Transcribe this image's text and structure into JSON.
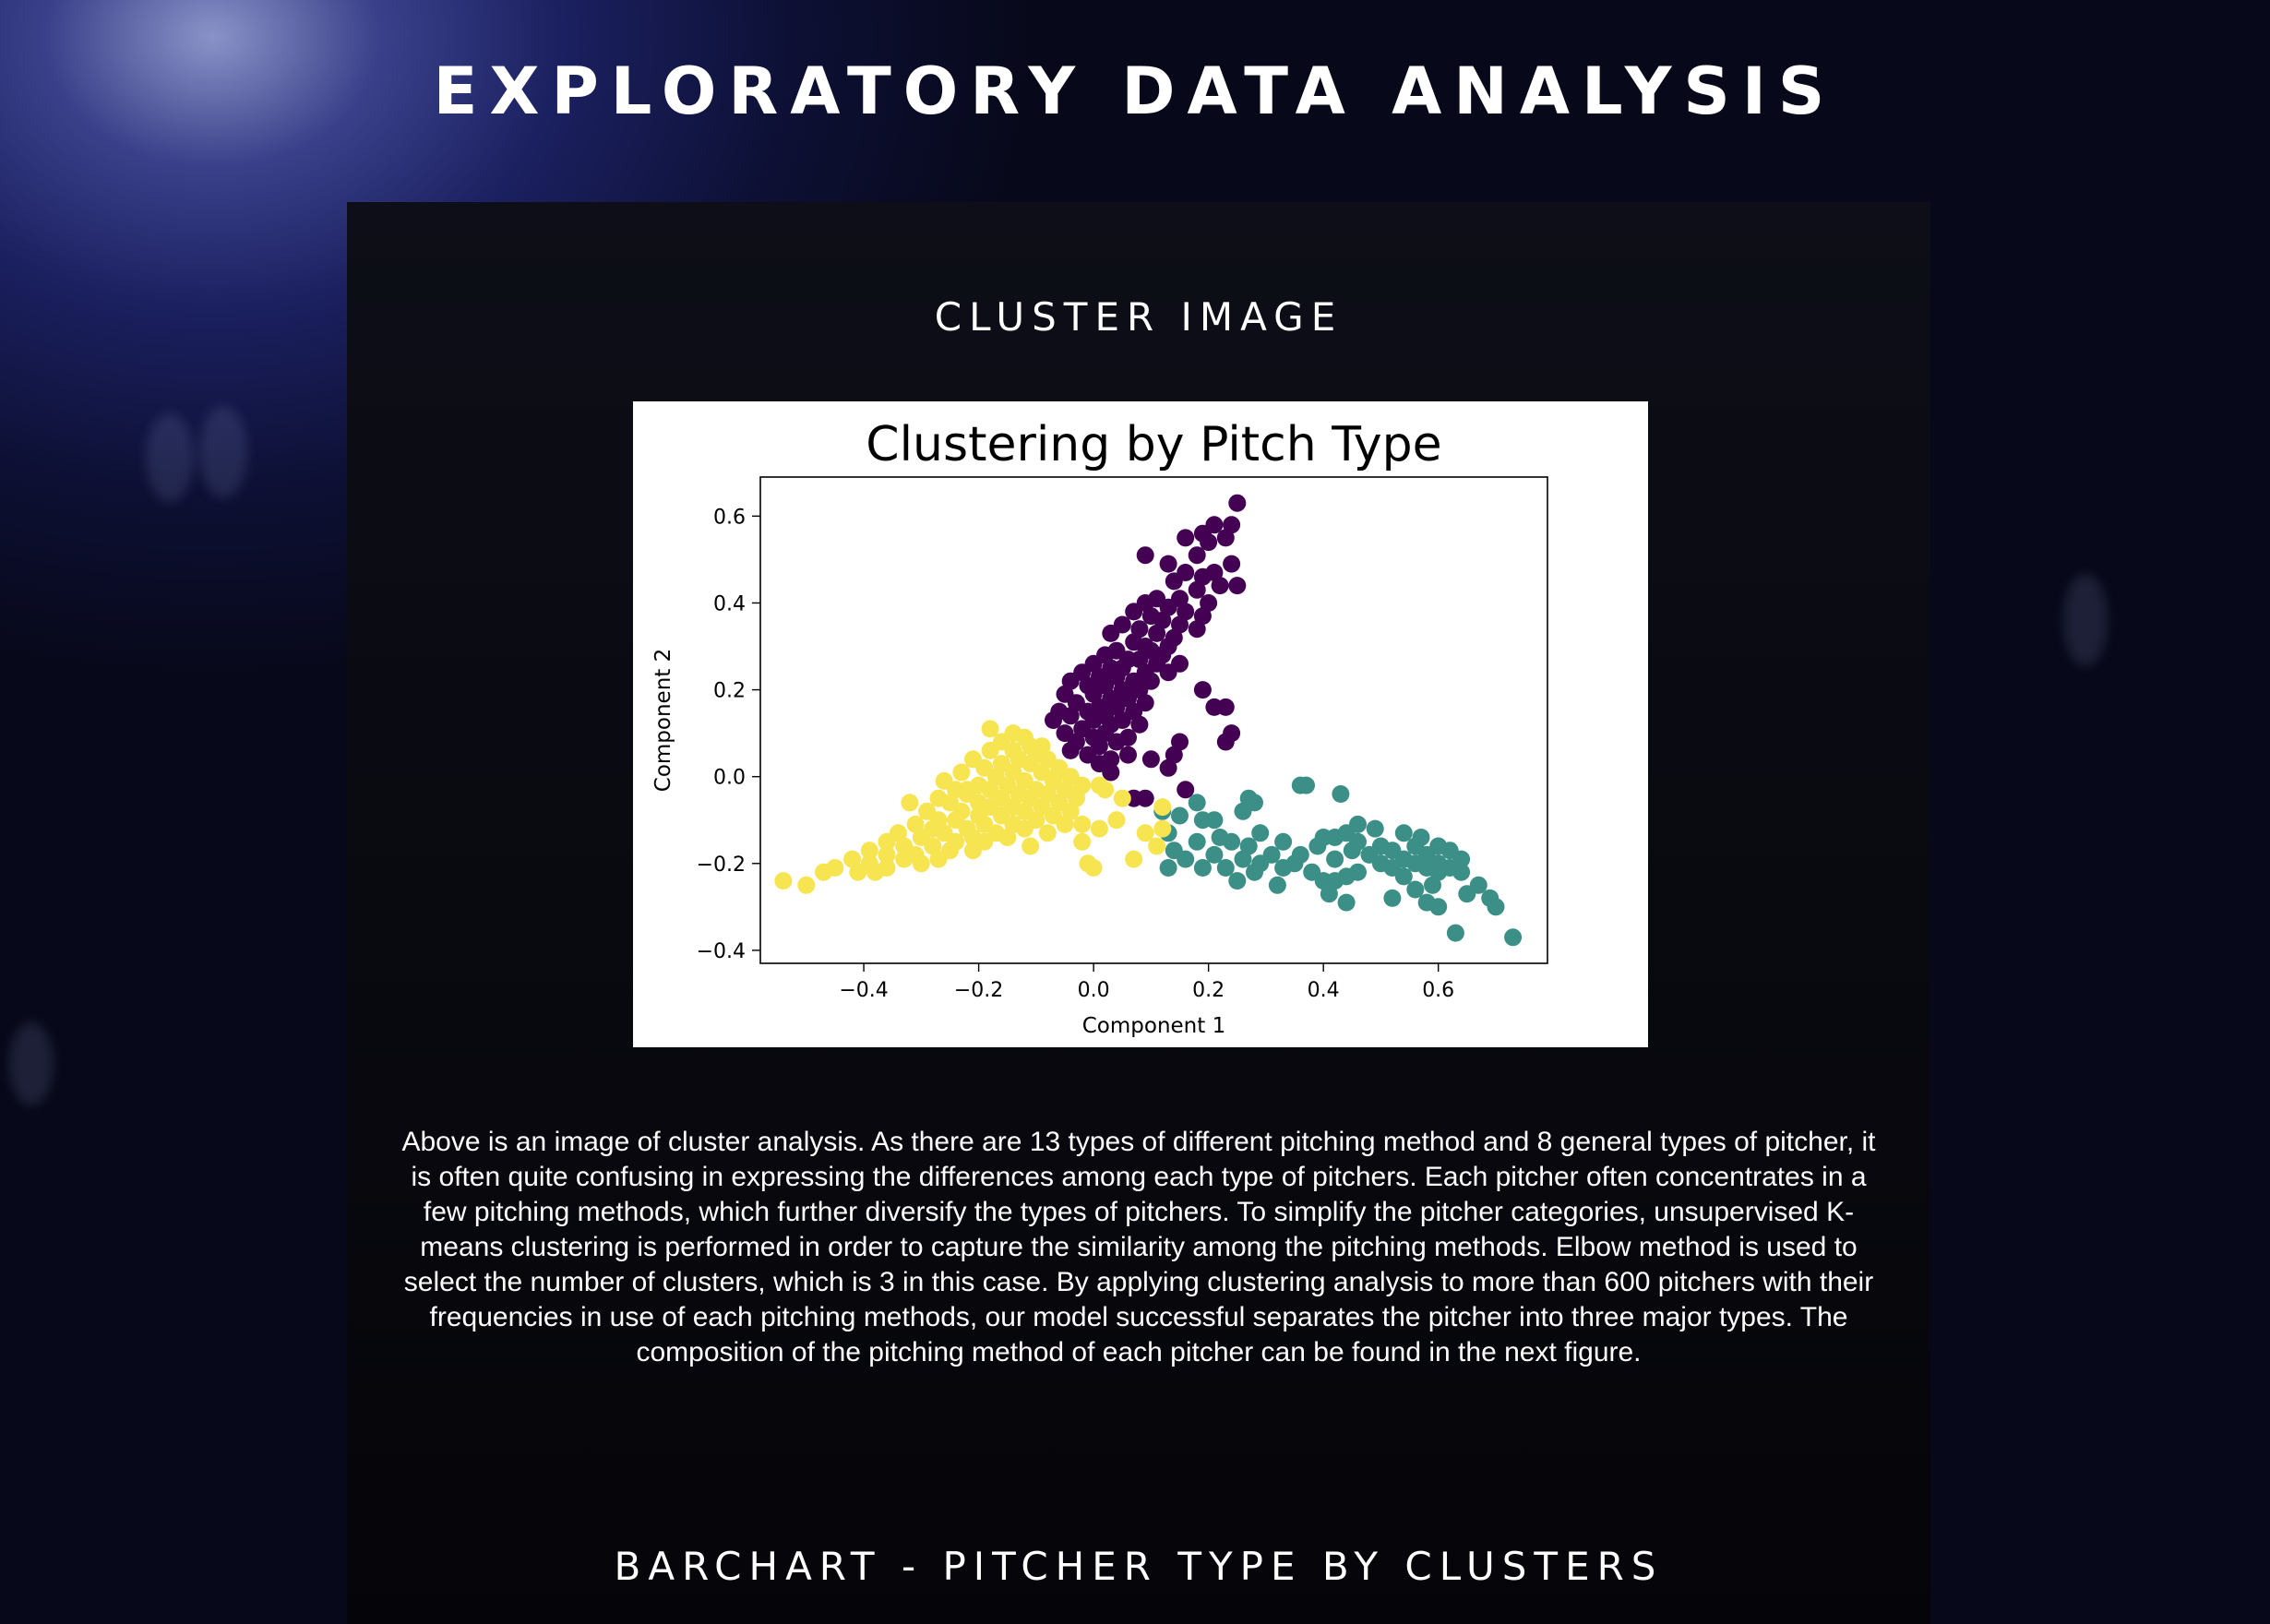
{
  "header": {
    "title": "EXPLORATORY DATA ANALYSIS"
  },
  "sections": {
    "cluster": {
      "title": "CLUSTER IMAGE",
      "description": "Above is an image of cluster analysis. As there are 13 types of different pitching method and 8 general types of pitcher, it is often quite confusing in expressing the differences among each type of pitchers. Each pitcher often concentrates in a few pitching methods, which further diversify the types of pitchers. To simplify the pitcher categories, unsupervised K-means clustering is performed in order to capture the similarity among the pitching methods. Elbow method is used to select the number of clusters, which is 3 in this case. By applying clustering analysis to more than 600 pitchers with their frequencies in use of each pitching methods, our model successful separates the pitcher into three major types. The composition of the pitching method of each pitcher can be found in the next figure."
    },
    "barchart": {
      "title": "BARCHART - PITCHER TYPE BY CLUSTERS"
    }
  },
  "colors": {
    "cluster_purple": "#440154",
    "cluster_teal": "#3b8f86",
    "cluster_yellow": "#f6e451"
  },
  "chart_data": {
    "type": "scatter",
    "title": "Clustering by Pitch Type",
    "xlabel": "Component 1",
    "ylabel": "Component 2",
    "xlim": [
      -0.58,
      0.79
    ],
    "ylim": [
      -0.43,
      0.69
    ],
    "xticks": [
      -0.4,
      -0.2,
      0.0,
      0.2,
      0.4,
      0.6
    ],
    "xtick_labels": [
      "−0.4",
      "−0.2",
      "0.0",
      "0.2",
      "0.4",
      "0.6"
    ],
    "yticks": [
      -0.4,
      -0.2,
      0.0,
      0.2,
      0.4,
      0.6
    ],
    "ytick_labels": [
      "−0.4",
      "−0.2",
      "0.0",
      "0.2",
      "0.4",
      "0.6"
    ],
    "grid": false,
    "series": [
      {
        "color": "#440154",
        "points": [
          [
            0.25,
            0.63
          ],
          [
            0.21,
            0.58
          ],
          [
            0.24,
            0.58
          ],
          [
            0.19,
            0.56
          ],
          [
            0.23,
            0.55
          ],
          [
            0.16,
            0.55
          ],
          [
            0.2,
            0.54
          ],
          [
            0.09,
            0.51
          ],
          [
            0.18,
            0.51
          ],
          [
            0.24,
            0.49
          ],
          [
            0.13,
            0.49
          ],
          [
            0.21,
            0.47
          ],
          [
            0.16,
            0.47
          ],
          [
            0.19,
            0.46
          ],
          [
            0.14,
            0.45
          ],
          [
            0.22,
            0.44
          ],
          [
            0.25,
            0.44
          ],
          [
            0.18,
            0.43
          ],
          [
            0.11,
            0.41
          ],
          [
            0.15,
            0.41
          ],
          [
            0.09,
            0.4
          ],
          [
            0.2,
            0.4
          ],
          [
            0.13,
            0.39
          ],
          [
            0.07,
            0.38
          ],
          [
            0.16,
            0.38
          ],
          [
            0.1,
            0.37
          ],
          [
            0.19,
            0.37
          ],
          [
            0.12,
            0.36
          ],
          [
            0.05,
            0.35
          ],
          [
            0.15,
            0.35
          ],
          [
            0.08,
            0.34
          ],
          [
            0.18,
            0.34
          ],
          [
            0.03,
            0.33
          ],
          [
            0.11,
            0.33
          ],
          [
            0.14,
            0.32
          ],
          [
            0.07,
            0.31
          ],
          [
            0.09,
            0.3
          ],
          [
            0.13,
            0.3
          ],
          [
            0.04,
            0.29
          ],
          [
            0.1,
            0.29
          ],
          [
            0.12,
            0.28
          ],
          [
            0.02,
            0.28
          ],
          [
            0.06,
            0.27
          ],
          [
            0.08,
            0.27
          ],
          [
            0.11,
            0.26
          ],
          [
            0.15,
            0.26
          ],
          [
            0.0,
            0.26
          ],
          [
            0.03,
            0.25
          ],
          [
            0.05,
            0.25
          ],
          [
            0.09,
            0.24
          ],
          [
            -0.02,
            0.24
          ],
          [
            0.13,
            0.24
          ],
          [
            0.01,
            0.23
          ],
          [
            0.04,
            0.23
          ],
          [
            0.07,
            0.22
          ],
          [
            -0.04,
            0.22
          ],
          [
            0.1,
            0.22
          ],
          [
            -0.01,
            0.21
          ],
          [
            0.02,
            0.21
          ],
          [
            0.05,
            0.2
          ],
          [
            0.08,
            0.2
          ],
          [
            0.19,
            0.2
          ],
          [
            -0.05,
            0.19
          ],
          [
            0.0,
            0.19
          ],
          [
            0.03,
            0.18
          ],
          [
            0.06,
            0.18
          ],
          [
            0.09,
            0.17
          ],
          [
            -0.03,
            0.17
          ],
          [
            0.01,
            0.16
          ],
          [
            0.04,
            0.16
          ],
          [
            0.23,
            0.16
          ],
          [
            0.21,
            0.16
          ],
          [
            -0.06,
            0.15
          ],
          [
            -0.01,
            0.15
          ],
          [
            0.07,
            0.15
          ],
          [
            0.02,
            0.14
          ],
          [
            -0.04,
            0.14
          ],
          [
            0.05,
            0.13
          ],
          [
            0.0,
            0.13
          ],
          [
            -0.07,
            0.13
          ],
          [
            0.03,
            0.12
          ],
          [
            0.08,
            0.12
          ],
          [
            -0.02,
            0.11
          ],
          [
            0.02,
            0.1
          ],
          [
            0.24,
            0.1
          ],
          [
            -0.05,
            0.1
          ],
          [
            0.06,
            0.09
          ],
          [
            0.0,
            0.09
          ],
          [
            -0.03,
            0.08
          ],
          [
            0.04,
            0.08
          ],
          [
            0.23,
            0.08
          ],
          [
            0.15,
            0.08
          ],
          [
            0.01,
            0.07
          ],
          [
            -0.04,
            0.06
          ],
          [
            0.14,
            0.05
          ],
          [
            0.06,
            0.05
          ],
          [
            -0.01,
            0.05
          ],
          [
            0.03,
            0.04
          ],
          [
            0.1,
            0.04
          ],
          [
            0.01,
            0.03
          ],
          [
            0.13,
            0.02
          ],
          [
            0.03,
            0.01
          ],
          [
            0.16,
            -0.03
          ],
          [
            0.09,
            -0.05
          ],
          [
            0.07,
            -0.05
          ]
        ]
      },
      {
        "color": "#3b8f86",
        "points": [
          [
            0.36,
            -0.02
          ],
          [
            0.37,
            -0.02
          ],
          [
            0.43,
            -0.04
          ],
          [
            0.27,
            -0.05
          ],
          [
            0.28,
            -0.06
          ],
          [
            0.18,
            -0.06
          ],
          [
            0.26,
            -0.08
          ],
          [
            0.12,
            -0.08
          ],
          [
            0.15,
            -0.09
          ],
          [
            0.19,
            -0.1
          ],
          [
            0.21,
            -0.1
          ],
          [
            0.46,
            -0.11
          ],
          [
            0.49,
            -0.12
          ],
          [
            0.54,
            -0.13
          ],
          [
            0.29,
            -0.13
          ],
          [
            0.44,
            -0.13
          ],
          [
            0.13,
            -0.13
          ],
          [
            0.22,
            -0.14
          ],
          [
            0.4,
            -0.14
          ],
          [
            0.57,
            -0.14
          ],
          [
            0.42,
            -0.14
          ],
          [
            0.24,
            -0.15
          ],
          [
            0.46,
            -0.15
          ],
          [
            0.33,
            -0.15
          ],
          [
            0.18,
            -0.15
          ],
          [
            0.5,
            -0.16
          ],
          [
            0.56,
            -0.16
          ],
          [
            0.6,
            -0.16
          ],
          [
            0.27,
            -0.16
          ],
          [
            0.39,
            -0.16
          ],
          [
            0.14,
            -0.17
          ],
          [
            0.52,
            -0.17
          ],
          [
            0.62,
            -0.17
          ],
          [
            0.45,
            -0.17
          ],
          [
            0.58,
            -0.18
          ],
          [
            0.31,
            -0.18
          ],
          [
            0.48,
            -0.18
          ],
          [
            0.36,
            -0.18
          ],
          [
            0.21,
            -0.18
          ],
          [
            0.64,
            -0.19
          ],
          [
            0.54,
            -0.19
          ],
          [
            0.42,
            -0.19
          ],
          [
            0.26,
            -0.19
          ],
          [
            0.16,
            -0.19
          ],
          [
            0.6,
            -0.2
          ],
          [
            0.56,
            -0.2
          ],
          [
            0.5,
            -0.2
          ],
          [
            0.35,
            -0.2
          ],
          [
            0.29,
            -0.2
          ],
          [
            0.19,
            -0.21
          ],
          [
            0.62,
            -0.21
          ],
          [
            0.58,
            -0.21
          ],
          [
            0.52,
            -0.21
          ],
          [
            0.33,
            -0.21
          ],
          [
            0.13,
            -0.21
          ],
          [
            0.23,
            -0.21
          ],
          [
            0.38,
            -0.22
          ],
          [
            0.6,
            -0.22
          ],
          [
            0.64,
            -0.22
          ],
          [
            0.46,
            -0.22
          ],
          [
            0.28,
            -0.22
          ],
          [
            0.54,
            -0.23
          ],
          [
            0.44,
            -0.23
          ],
          [
            0.4,
            -0.24
          ],
          [
            0.25,
            -0.24
          ],
          [
            0.42,
            -0.24
          ],
          [
            0.59,
            -0.25
          ],
          [
            0.67,
            -0.25
          ],
          [
            0.32,
            -0.25
          ],
          [
            0.56,
            -0.26
          ],
          [
            0.41,
            -0.27
          ],
          [
            0.65,
            -0.27
          ],
          [
            0.69,
            -0.28
          ],
          [
            0.52,
            -0.28
          ],
          [
            0.44,
            -0.29
          ],
          [
            0.58,
            -0.29
          ],
          [
            0.7,
            -0.3
          ],
          [
            0.6,
            -0.3
          ],
          [
            0.73,
            -0.37
          ],
          [
            0.63,
            -0.36
          ]
        ]
      },
      {
        "color": "#f6e451",
        "points": [
          [
            -0.12,
            0.09
          ],
          [
            -0.16,
            0.08
          ],
          [
            -0.11,
            0.07
          ],
          [
            -0.09,
            0.07
          ],
          [
            -0.14,
            0.06
          ],
          [
            -0.18,
            0.06
          ],
          [
            -0.1,
            0.05
          ],
          [
            -0.13,
            0.04
          ],
          [
            -0.21,
            0.04
          ],
          [
            -0.08,
            0.04
          ],
          [
            -0.16,
            0.03
          ],
          [
            -0.11,
            0.03
          ],
          [
            -0.06,
            0.02
          ],
          [
            -0.19,
            0.02
          ],
          [
            -0.14,
            0.01
          ],
          [
            -0.23,
            0.01
          ],
          [
            -0.09,
            0.01
          ],
          [
            -0.04,
            0.0
          ],
          [
            -0.17,
            0.0
          ],
          [
            -0.12,
            -0.01
          ],
          [
            -0.26,
            -0.01
          ],
          [
            -0.07,
            -0.01
          ],
          [
            -0.2,
            -0.02
          ],
          [
            -0.15,
            -0.02
          ],
          [
            -0.02,
            -0.02
          ],
          [
            -0.1,
            -0.03
          ],
          [
            -0.24,
            -0.03
          ],
          [
            -0.18,
            -0.03
          ],
          [
            -0.05,
            -0.03
          ],
          [
            -0.13,
            -0.04
          ],
          [
            -0.22,
            -0.04
          ],
          [
            -0.08,
            -0.04
          ],
          [
            -0.27,
            -0.05
          ],
          [
            -0.16,
            -0.05
          ],
          [
            -0.11,
            -0.05
          ],
          [
            -0.03,
            -0.05
          ],
          [
            -0.2,
            -0.06
          ],
          [
            -0.06,
            -0.06
          ],
          [
            -0.25,
            -0.06
          ],
          [
            -0.14,
            -0.07
          ],
          [
            -0.09,
            -0.07
          ],
          [
            -0.18,
            -0.07
          ],
          [
            -0.29,
            -0.08
          ],
          [
            -0.23,
            -0.08
          ],
          [
            -0.04,
            -0.08
          ],
          [
            -0.12,
            -0.08
          ],
          [
            -0.16,
            -0.09
          ],
          [
            -0.2,
            -0.09
          ],
          [
            -0.07,
            -0.09
          ],
          [
            -0.27,
            -0.1
          ],
          [
            -0.1,
            -0.1
          ],
          [
            -0.24,
            -0.1
          ],
          [
            -0.14,
            -0.11
          ],
          [
            -0.31,
            -0.11
          ],
          [
            -0.19,
            -0.11
          ],
          [
            -0.05,
            -0.11
          ],
          [
            -0.22,
            -0.12
          ],
          [
            -0.28,
            -0.12
          ],
          [
            -0.12,
            -0.12
          ],
          [
            -0.34,
            -0.13
          ],
          [
            -0.17,
            -0.13
          ],
          [
            -0.26,
            -0.13
          ],
          [
            -0.08,
            -0.13
          ],
          [
            -0.21,
            -0.14
          ],
          [
            -0.3,
            -0.14
          ],
          [
            -0.15,
            -0.14
          ],
          [
            -0.36,
            -0.15
          ],
          [
            -0.24,
            -0.15
          ],
          [
            -0.02,
            -0.15
          ],
          [
            -0.19,
            -0.15
          ],
          [
            -0.28,
            -0.16
          ],
          [
            -0.33,
            -0.16
          ],
          [
            -0.11,
            -0.16
          ],
          [
            -0.39,
            -0.17
          ],
          [
            -0.25,
            -0.17
          ],
          [
            -0.21,
            -0.17
          ],
          [
            -0.31,
            -0.18
          ],
          [
            -0.36,
            -0.18
          ],
          [
            -0.27,
            -0.19
          ],
          [
            -0.42,
            -0.19
          ],
          [
            -0.33,
            -0.19
          ],
          [
            -0.39,
            -0.2
          ],
          [
            -0.3,
            -0.2
          ],
          [
            -0.45,
            -0.21
          ],
          [
            -0.36,
            -0.21
          ],
          [
            -0.41,
            -0.22
          ],
          [
            -0.47,
            -0.22
          ],
          [
            -0.38,
            -0.22
          ],
          [
            -0.54,
            -0.24
          ],
          [
            -0.5,
            -0.25
          ],
          [
            -0.02,
            -0.11
          ],
          [
            0.01,
            -0.12
          ],
          [
            0.04,
            -0.1
          ],
          [
            0.09,
            -0.13
          ],
          [
            0.12,
            -0.12
          ],
          [
            0.07,
            -0.19
          ],
          [
            -0.01,
            -0.2
          ],
          [
            0.0,
            -0.21
          ],
          [
            -0.06,
            0.01
          ],
          [
            0.02,
            -0.03
          ],
          [
            0.05,
            -0.05
          ],
          [
            -0.14,
            0.1
          ],
          [
            -0.18,
            0.11
          ],
          [
            -0.22,
            -0.03
          ],
          [
            -0.32,
            -0.06
          ],
          [
            0.11,
            -0.16
          ],
          [
            0.12,
            -0.07
          ],
          [
            -0.03,
            -0.04
          ],
          [
            0.01,
            -0.02
          ]
        ]
      }
    ]
  }
}
